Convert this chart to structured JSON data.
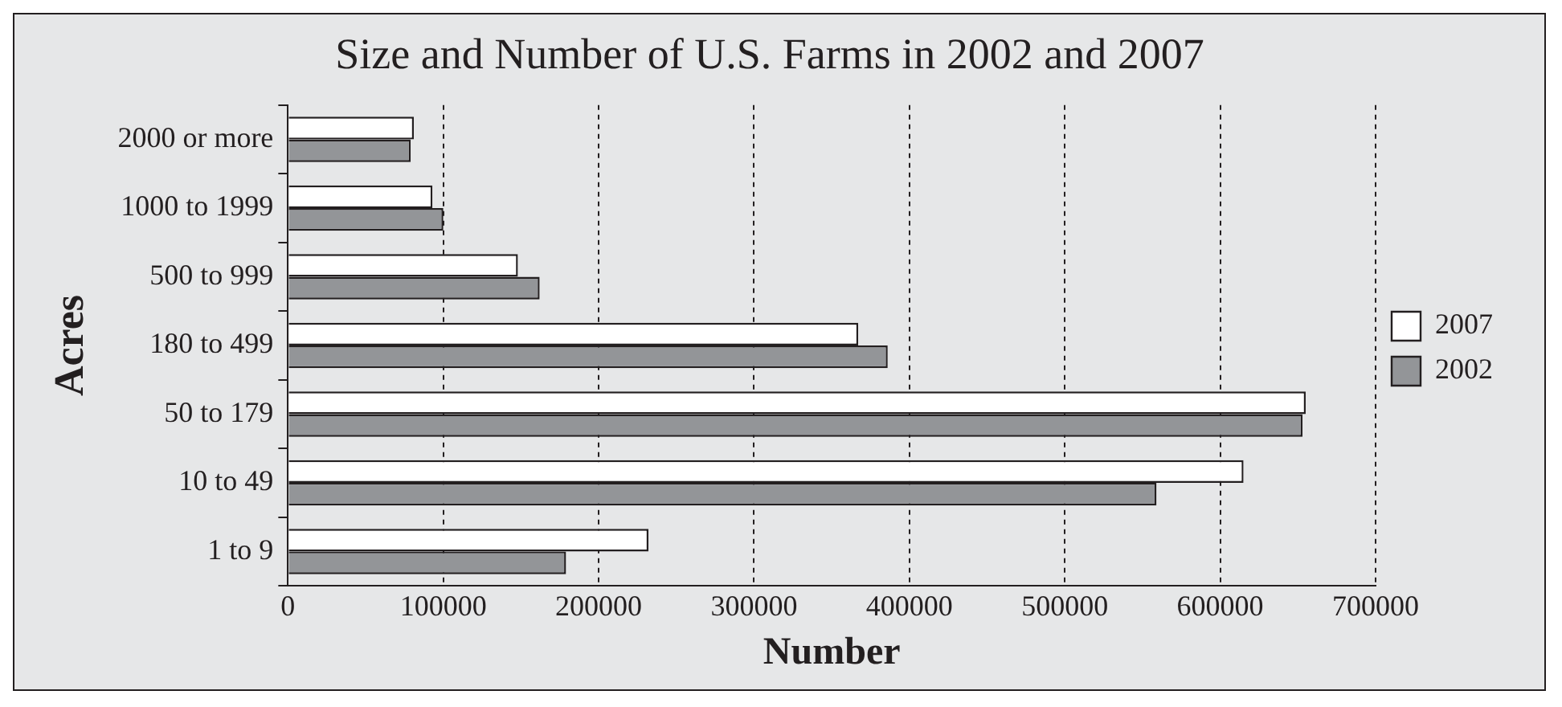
{
  "chart_data": {
    "type": "bar",
    "orientation": "horizontal",
    "title": "Size and Number of U.S. Farms in 2002 and 2007",
    "xlabel": "Number",
    "ylabel": "Acres",
    "categories": [
      "2000 or more",
      "1000 to 1999",
      "500 to 999",
      "180 to 499",
      "50 to 179",
      "10 to 49",
      "1 to 9"
    ],
    "series": [
      {
        "name": "2007",
        "color": "#ffffff",
        "values": [
          81000,
          93000,
          148000,
          367000,
          655000,
          615000,
          232000
        ]
      },
      {
        "name": "2002",
        "color": "#939598",
        "values": [
          79000,
          100000,
          162000,
          386000,
          653000,
          559000,
          179000
        ]
      }
    ],
    "xlim": [
      0,
      700000
    ],
    "xticks": [
      0,
      100000,
      200000,
      300000,
      400000,
      500000,
      600000,
      700000
    ],
    "grid": "x",
    "legend": "right"
  }
}
